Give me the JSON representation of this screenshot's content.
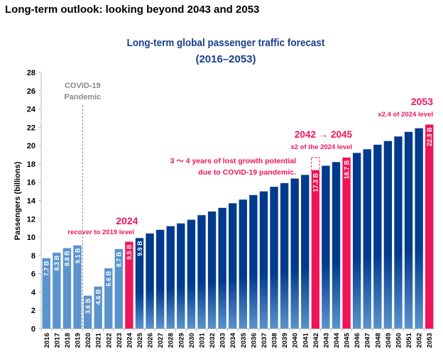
{
  "page_title": "Long-term outlook: looking beyond 2043 and 2053",
  "chart_data": {
    "type": "bar",
    "title": "Long-term global passenger traffic forecast",
    "subtitle": "(2016–2053)",
    "xlabel": "",
    "ylabel": "Passengers (billions)",
    "ylim": [
      0,
      28
    ],
    "yticks": [
      0,
      2,
      4,
      6,
      8,
      10,
      12,
      14,
      16,
      18,
      20,
      22,
      24,
      26,
      28
    ],
    "grid": false,
    "categories": [
      "2016",
      "2017",
      "2018",
      "2019",
      "2020",
      "2021",
      "2022",
      "2023",
      "2024",
      "2025",
      "2026",
      "2027",
      "2028",
      "2029",
      "2030",
      "2031",
      "2032",
      "2033",
      "2034",
      "2035",
      "2036",
      "2037",
      "2038",
      "2039",
      "2040",
      "2041",
      "2042",
      "2043",
      "2044",
      "2045",
      "2046",
      "2047",
      "2048",
      "2049",
      "2050",
      "2051",
      "2052",
      "2053"
    ],
    "values": [
      7.7,
      8.3,
      8.8,
      9.1,
      3.6,
      4.6,
      6.6,
      8.7,
      9.5,
      9.9,
      10.4,
      10.8,
      11.2,
      11.5,
      11.9,
      12.4,
      12.8,
      13.2,
      13.7,
      14.1,
      14.6,
      15.0,
      15.5,
      15.9,
      16.4,
      16.8,
      17.3,
      17.8,
      18.2,
      18.7,
      19.2,
      19.6,
      20.1,
      20.5,
      21.0,
      21.5,
      21.9,
      22.3
    ],
    "data_labels": {
      "2016": "7.7 B",
      "2017": "8.3 B",
      "2018": "8.8 B",
      "2019": "9.1 B",
      "2020": "3.6 B",
      "2021": "4.6 B",
      "2022": "6.6 B",
      "2023": "8.7 B",
      "2024": "9.5 B",
      "2025": "9.9 B",
      "2042": "17.3 B",
      "2045": "18.7 B",
      "2053": "22.3 B"
    },
    "colors": {
      "actual": "#5b93cc",
      "forecast": "#003a8c",
      "forecast_bottom": "#5b93cc",
      "highlight": "#f0145a",
      "annotation": "#f0145a",
      "covid": "#8a8a8a",
      "title": "#1a3e8c"
    },
    "highlighted": [
      "2024",
      "2042",
      "2045",
      "2053"
    ],
    "lost_growth_box": {
      "year": "2042",
      "from": 17.3,
      "to": 18.7
    },
    "annotations": {
      "covid_line_between": [
        "2019",
        "2020"
      ],
      "covid_title": "COVID-19",
      "covid_sub": "Pandemic",
      "a2024_title": "2024",
      "a2024_sub": "recover to 2019 level",
      "lost_line1": "3 ～ 4 years of lost growth potential",
      "lost_line2": "due to COVID-19 pandemic.",
      "a2042_title": "2042 → 2045",
      "a2042_sub": "x2 of the 2024 level",
      "a2053_title": "2053",
      "a2053_sub": "x2.4 of 2024 level"
    }
  }
}
